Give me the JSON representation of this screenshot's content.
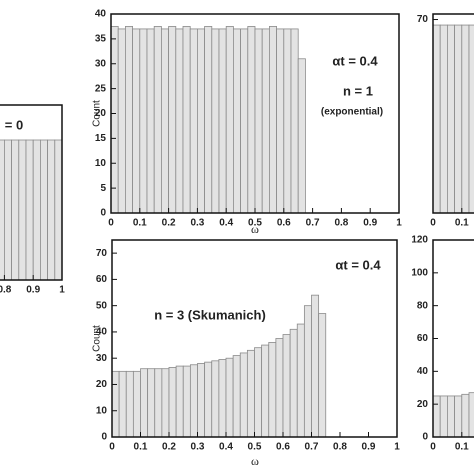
{
  "chart_data": [
    {
      "type": "histogram",
      "annotations": [
        "αt = 0.4",
        "n = 1",
        "(exponential)"
      ],
      "xlabel": "ω",
      "ylabel": "Count",
      "bins": [
        0,
        0.025,
        0.05,
        0.075,
        0.1,
        0.125,
        0.15,
        0.175,
        0.2,
        0.225,
        0.25,
        0.275,
        0.3,
        0.325,
        0.35,
        0.375,
        0.4,
        0.425,
        0.45,
        0.475,
        0.5,
        0.525,
        0.55,
        0.575,
        0.6,
        0.625,
        0.65,
        0.675
      ],
      "values": [
        37.5,
        37,
        37.5,
        37,
        37,
        37,
        37.5,
        37,
        37.5,
        37,
        37.5,
        37,
        37,
        37.5,
        37,
        37,
        37.5,
        37,
        37,
        37.5,
        37,
        37,
        37.5,
        37,
        37,
        37,
        31
      ],
      "xlim": [
        0,
        1
      ],
      "ylim": [
        0,
        40
      ],
      "xticks": [
        0,
        0.1,
        0.2,
        0.3,
        0.4,
        0.5,
        0.6,
        0.7,
        0.8,
        0.9,
        1
      ],
      "yticks": [
        0,
        5,
        10,
        15,
        20,
        25,
        30,
        35,
        40
      ]
    },
    {
      "type": "histogram",
      "annotations": [
        "αt = 0.4",
        "n = 3  (Skumanich)"
      ],
      "xlabel": "ω",
      "ylabel": "Count",
      "bins": [
        0,
        0.025,
        0.05,
        0.075,
        0.1,
        0.125,
        0.15,
        0.175,
        0.2,
        0.225,
        0.25,
        0.275,
        0.3,
        0.325,
        0.35,
        0.375,
        0.4,
        0.425,
        0.45,
        0.475,
        0.5,
        0.525,
        0.55,
        0.575,
        0.6,
        0.625,
        0.65,
        0.675,
        0.7,
        0.725,
        0.75
      ],
      "values": [
        25,
        25,
        25,
        25,
        26,
        26,
        26,
        26,
        26.5,
        27,
        27,
        27.5,
        28,
        28.5,
        29,
        29.5,
        30,
        31,
        32,
        33,
        34,
        35,
        36,
        37.5,
        39,
        41,
        43,
        50,
        54,
        47
      ],
      "xlim": [
        0,
        1
      ],
      "ylim": [
        0,
        75
      ],
      "xticks": [
        0,
        0.1,
        0.2,
        0.3,
        0.4,
        0.5,
        0.6,
        0.7,
        0.8,
        0.9,
        1
      ],
      "yticks": [
        0,
        10,
        20,
        30,
        40,
        50,
        60,
        70
      ]
    },
    {
      "type": "histogram",
      "annotations": [
        "= 0"
      ],
      "bins": [
        0.775,
        0.8,
        0.825,
        0.85,
        0.875,
        0.9,
        0.925,
        0.95,
        0.975,
        1
      ],
      "values": [
        64,
        64,
        64,
        64,
        64,
        64,
        64,
        64,
        64
      ],
      "xlim": [
        0,
        1
      ],
      "ylim": [
        0,
        80
      ],
      "xticks": [
        0.8,
        0.9,
        1
      ]
    },
    {
      "type": "histogram",
      "bins": [
        0,
        0.025,
        0.05,
        0.075,
        0.1,
        0.125,
        0.15
      ],
      "values": [
        68,
        68,
        68,
        68,
        68,
        68
      ],
      "xlim": [
        0,
        1
      ],
      "ylim": [
        0,
        72
      ],
      "xticks": [
        0,
        0.1
      ],
      "yticks": [
        70
      ]
    },
    {
      "type": "histogram",
      "bins": [
        0,
        0.025,
        0.05,
        0.075,
        0.1,
        0.125,
        0.15
      ],
      "values": [
        25,
        25,
        25,
        25,
        26,
        27
      ],
      "xlim": [
        0,
        1
      ],
      "ylim": [
        0,
        120
      ],
      "xticks": [
        0,
        0.1
      ],
      "yticks": [
        0,
        20,
        40,
        60,
        80,
        100,
        120
      ]
    }
  ]
}
